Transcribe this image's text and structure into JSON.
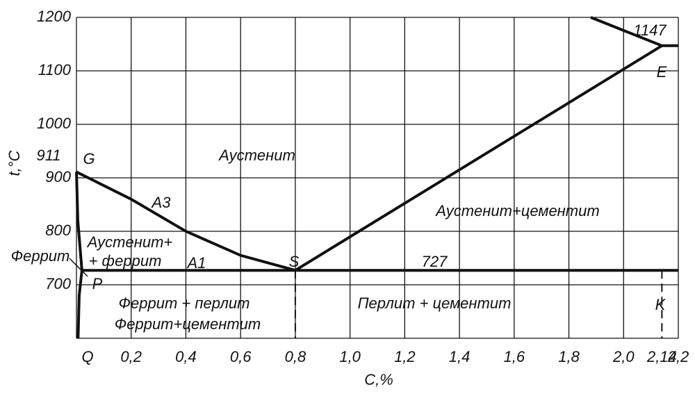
{
  "chart_data": {
    "type": "phase",
    "xlabel": "C,%",
    "ylabel": "t,°C",
    "xlim": [
      0,
      2.2
    ],
    "ylim": [
      600,
      1200
    ],
    "xticks": [
      {
        "value": 0.2,
        "label": "0,2"
      },
      {
        "value": 0.4,
        "label": "0,4"
      },
      {
        "value": 0.6,
        "label": "0,6"
      },
      {
        "value": 0.8,
        "label": "0,8"
      },
      {
        "value": 1.0,
        "label": "1,0"
      },
      {
        "value": 1.2,
        "label": "1,2"
      },
      {
        "value": 1.4,
        "label": "1,4"
      },
      {
        "value": 1.6,
        "label": "1,6"
      },
      {
        "value": 1.8,
        "label": "1,8"
      },
      {
        "value": 2.0,
        "label": "2,0"
      },
      {
        "value": 2.14,
        "label": "2,14"
      },
      {
        "value": 2.2,
        "label": "2,2"
      }
    ],
    "yticks": [
      700,
      800,
      900,
      1000,
      1100,
      1200
    ],
    "grid": true,
    "color": "#111111",
    "series": [
      {
        "x": [
          0,
          0.2,
          0.4,
          0.6,
          0.8
        ],
        "values": [
          911,
          860,
          800,
          755,
          727
        ]
      },
      {
        "x": [
          0.8,
          2.14
        ],
        "values": [
          727,
          1147
        ]
      },
      {
        "x": [
          1.88,
          2.14,
          2.2
        ],
        "values": [
          1200,
          1147,
          1147
        ]
      },
      {
        "x": [
          0.02,
          2.2
        ],
        "values": [
          727,
          727
        ]
      },
      {
        "x": [
          0,
          0.005,
          0.02
        ],
        "values": [
          911,
          820,
          727
        ]
      },
      {
        "x": [
          0.02,
          0.01,
          0.006
        ],
        "values": [
          727,
          680,
          600
        ]
      }
    ],
    "annotations": [
      "911",
      "727",
      "1147",
      "G",
      "A3",
      "A1",
      "S",
      "P",
      "Q",
      "E",
      "K",
      "Аустенит",
      "Аустенит+цементит",
      "Аустенит+",
      "+ феррит",
      "Феррит",
      "Феррит + перлит",
      "Феррит+цементит",
      "Перлит + цементит"
    ]
  }
}
